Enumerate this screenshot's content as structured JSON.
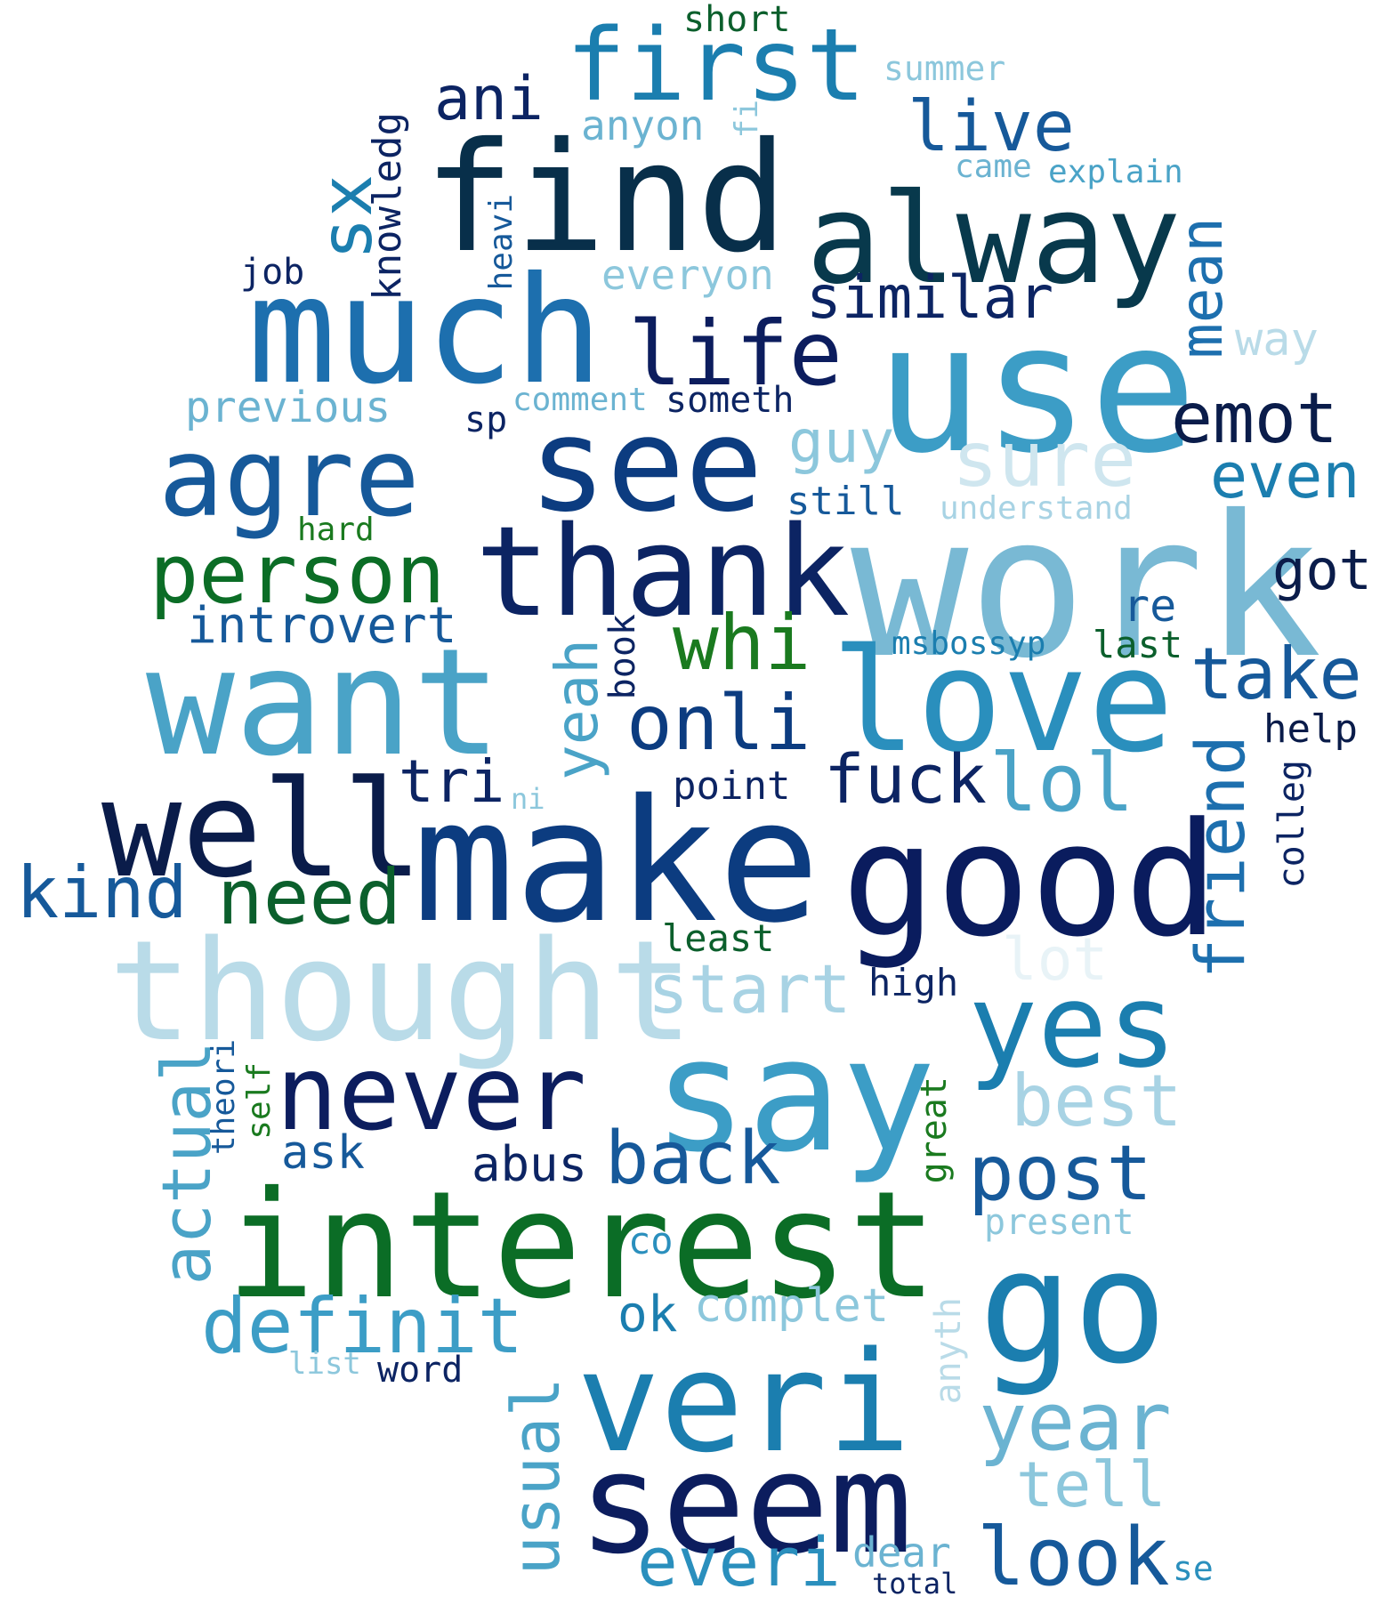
{
  "words": [
    {
      "text": "short",
      "color": "#0b5f2c"
    },
    {
      "text": "first",
      "color": "#1b7eaf"
    },
    {
      "text": "summer",
      "color": "#8cc7dc"
    },
    {
      "text": "ani",
      "color": "#0c2463"
    },
    {
      "text": "anyon",
      "color": "#6bb3d1"
    },
    {
      "text": "fi",
      "color": "#8cc7dc"
    },
    {
      "text": "live",
      "color": "#16599a"
    },
    {
      "text": "came",
      "color": "#6bb3d1"
    },
    {
      "text": "explain",
      "color": "#4aa3c7"
    },
    {
      "text": "find",
      "color": "#082f4a"
    },
    {
      "text": "alway",
      "color": "#08394c"
    },
    {
      "text": "knowledg",
      "color": "#0c2463"
    },
    {
      "text": "heavi",
      "color": "#16599a"
    },
    {
      "text": "sx",
      "color": "#1b7eaf"
    },
    {
      "text": "job",
      "color": "#0c2463"
    },
    {
      "text": "mean",
      "color": "#1d6fae"
    },
    {
      "text": "everyon",
      "color": "#8cc7dc"
    },
    {
      "text": "similar",
      "color": "#0c2463"
    },
    {
      "text": "much",
      "color": "#1d6fae"
    },
    {
      "text": "use",
      "color": "#3c9dc6"
    },
    {
      "text": "life",
      "color": "#0c1d5e"
    },
    {
      "text": "way",
      "color": "#b9dbe8"
    },
    {
      "text": "previous",
      "color": "#6bb3d1"
    },
    {
      "text": "comment",
      "color": "#6bb3d1"
    },
    {
      "text": "someth",
      "color": "#0c2463"
    },
    {
      "text": "sp",
      "color": "#0c2463"
    },
    {
      "text": "emot",
      "color": "#0a1c4a"
    },
    {
      "text": "agre",
      "color": "#16599a"
    },
    {
      "text": "see",
      "color": "#0c3c80"
    },
    {
      "text": "guy",
      "color": "#8cc7dc"
    },
    {
      "text": "sure",
      "color": "#cfe6ef"
    },
    {
      "text": "even",
      "color": "#1b7eaf"
    },
    {
      "text": "still",
      "color": "#16599a"
    },
    {
      "text": "understand",
      "color": "#a8d3e4"
    },
    {
      "text": "hard",
      "color": "#1a7a1f"
    },
    {
      "text": "work",
      "color": "#79b9d4"
    },
    {
      "text": "person",
      "color": "#0b6d26"
    },
    {
      "text": "thank",
      "color": "#0c2463"
    },
    {
      "text": "got",
      "color": "#0a1c4a"
    },
    {
      "text": "introvert",
      "color": "#16599a"
    },
    {
      "text": "re",
      "color": "#16599a"
    },
    {
      "text": "book",
      "color": "#0c2463"
    },
    {
      "text": "msbossyp",
      "color": "#1b7eaf"
    },
    {
      "text": "last",
      "color": "#0b5f2c"
    },
    {
      "text": "whi",
      "color": "#1a7a1f"
    },
    {
      "text": "take",
      "color": "#16599a"
    },
    {
      "text": "want",
      "color": "#4aa3c7"
    },
    {
      "text": "yeah",
      "color": "#4aa3c7"
    },
    {
      "text": "onli",
      "color": "#0c3c80"
    },
    {
      "text": "love",
      "color": "#2a8fbd"
    },
    {
      "text": "help",
      "color": "#0a1c4a"
    },
    {
      "text": "fuck",
      "color": "#0c2463"
    },
    {
      "text": "lol",
      "color": "#4aa3c7"
    },
    {
      "text": "friend",
      "color": "#1d6fae"
    },
    {
      "text": "tri",
      "color": "#0c2463"
    },
    {
      "text": "ni",
      "color": "#8cc7dc"
    },
    {
      "text": "point",
      "color": "#0c2463"
    },
    {
      "text": "well",
      "color": "#0a1c4a"
    },
    {
      "text": "colleg",
      "color": "#0c2463"
    },
    {
      "text": "make",
      "color": "#0c3c80"
    },
    {
      "text": "good",
      "color": "#0a1c5e"
    },
    {
      "text": "kind",
      "color": "#16599a"
    },
    {
      "text": "need",
      "color": "#0b5f2c"
    },
    {
      "text": "least",
      "color": "#0b5f2c"
    },
    {
      "text": "thought",
      "color": "#b9dbe8"
    },
    {
      "text": "lot",
      "color": "#e8f3f7"
    },
    {
      "text": "start",
      "color": "#a8d3e4"
    },
    {
      "text": "high",
      "color": "#0c2463"
    },
    {
      "text": "yes",
      "color": "#1b7eaf"
    },
    {
      "text": "actual",
      "color": "#4aa3c7"
    },
    {
      "text": "theori",
      "color": "#16599a"
    },
    {
      "text": "self",
      "color": "#1a7a1f"
    },
    {
      "text": "never",
      "color": "#0c1d5e"
    },
    {
      "text": "say",
      "color": "#3c9dc6"
    },
    {
      "text": "great",
      "color": "#1a7a1f"
    },
    {
      "text": "best",
      "color": "#a8d3e4"
    },
    {
      "text": "ask",
      "color": "#16599a"
    },
    {
      "text": "abus",
      "color": "#0c2463"
    },
    {
      "text": "back",
      "color": "#16599a"
    },
    {
      "text": "post",
      "color": "#16599a"
    },
    {
      "text": "present",
      "color": "#8cc7dc"
    },
    {
      "text": "interest",
      "color": "#0b6d26"
    },
    {
      "text": "co",
      "color": "#2a8fbd"
    },
    {
      "text": "go",
      "color": "#1b7eaf"
    },
    {
      "text": "definit",
      "color": "#3c9dc6"
    },
    {
      "text": "ok",
      "color": "#1b7eaf"
    },
    {
      "text": "complet",
      "color": "#8cc7dc"
    },
    {
      "text": "anyth",
      "color": "#b9dbe8"
    },
    {
      "text": "list",
      "color": "#8cc7dc"
    },
    {
      "text": "word",
      "color": "#0c2463"
    },
    {
      "text": "veri",
      "color": "#1b7eaf"
    },
    {
      "text": "year",
      "color": "#6bb3d1"
    },
    {
      "text": "usual",
      "color": "#4aa3c7"
    },
    {
      "text": "seem",
      "color": "#0c1d5e"
    },
    {
      "text": "tell",
      "color": "#8cc7dc"
    },
    {
      "text": "everi",
      "color": "#2a8fbd"
    },
    {
      "text": "dear",
      "color": "#6bb3d1"
    },
    {
      "text": "look",
      "color": "#16599a"
    },
    {
      "text": "se",
      "color": "#2a8fbd"
    },
    {
      "text": "total",
      "color": "#0c2463"
    }
  ]
}
